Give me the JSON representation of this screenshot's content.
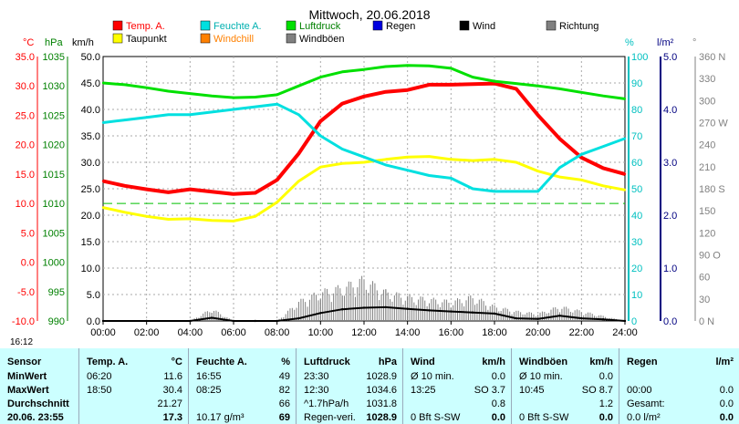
{
  "chart_data": {
    "type": "line",
    "title": "Mittwoch, 20.06.2018",
    "x_ticks": [
      "00:00",
      "02:00",
      "04:00",
      "06:00",
      "08:00",
      "10:00",
      "12:00",
      "14:00",
      "16:00",
      "18:00",
      "20:00",
      "22:00",
      "24:00"
    ],
    "axes": {
      "temp": {
        "unit": "°C",
        "ticks": [
          "35.0",
          "30.0",
          "25.0",
          "20.0",
          "15.0",
          "10.0",
          "5.0",
          "0.0",
          "-5.0",
          "-10.0"
        ],
        "range": [
          -10,
          35
        ],
        "color": "#ff0000"
      },
      "pressure": {
        "unit": "hPa",
        "ticks": [
          "1035",
          "1030",
          "1025",
          "1020",
          "1015",
          "1010",
          "1005",
          "1000",
          "995",
          "990"
        ],
        "range": [
          990,
          1035
        ],
        "color": "#008000"
      },
      "wind": {
        "unit": "km/h",
        "ticks": [
          "50.0",
          "45.0",
          "40.0",
          "35.0",
          "30.0",
          "25.0",
          "20.0",
          "15.0",
          "10.0",
          "5.0",
          "0.0"
        ],
        "range": [
          0,
          50
        ],
        "color": "#000000"
      },
      "humidity": {
        "unit": "%",
        "ticks": [
          "100",
          "90",
          "80",
          "70",
          "60",
          "50",
          "40",
          "30",
          "20",
          "10",
          "0"
        ],
        "range": [
          0,
          100
        ],
        "color": "#00c0c0"
      },
      "rain": {
        "unit": "l/m²",
        "ticks": [
          "5.0",
          "4.0",
          "3.0",
          "2.0",
          "1.0",
          "0.0"
        ],
        "range": [
          0,
          5
        ],
        "color": "#000080"
      },
      "direction": {
        "unit": "°",
        "ticks": [
          "360 N",
          "330",
          "300",
          "270 W",
          "240",
          "210",
          "180 S",
          "150",
          "120",
          "90 O",
          "60",
          "30",
          "0 N"
        ],
        "range": [
          0,
          360
        ],
        "color": "#808080"
      }
    },
    "legend": [
      {
        "name": "Temp. A.",
        "color": "#ff0000"
      },
      {
        "name": "Feuchte A.",
        "color": "#00e0e0"
      },
      {
        "name": "Luftdruck",
        "color": "#00e000"
      },
      {
        "name": "Regen",
        "color": "#0000e0"
      },
      {
        "name": "Wind",
        "color": "#000000"
      },
      {
        "name": "Richtung",
        "color": "#808080"
      },
      {
        "name": "Taupunkt",
        "color": "#ffff00"
      },
      {
        "name": "Windchill",
        "color": "#ff8000"
      },
      {
        "name": "Windböen",
        "color": "#808080"
      }
    ],
    "series": [
      {
        "name": "Temp. A.",
        "axis": "temp",
        "color": "#ff0000",
        "x": [
          0,
          1,
          2,
          3,
          4,
          5,
          6,
          7,
          8,
          9,
          10,
          11,
          12,
          13,
          14,
          15,
          16,
          17,
          18,
          19,
          20,
          21,
          22,
          23,
          24
        ],
        "values": [
          13.8,
          13,
          12.4,
          11.9,
          12.4,
          12,
          11.6,
          11.8,
          14,
          18.5,
          24,
          27,
          28.2,
          29,
          29.3,
          30.2,
          30.2,
          30.3,
          30.4,
          29.5,
          25,
          21,
          17.8,
          16,
          15
        ]
      },
      {
        "name": "Taupunkt",
        "axis": "temp",
        "color": "#ffff00",
        "x": [
          0,
          1,
          2,
          3,
          4,
          5,
          6,
          7,
          8,
          9,
          10,
          11,
          12,
          13,
          14,
          15,
          16,
          17,
          18,
          19,
          20,
          21,
          22,
          23,
          24
        ],
        "values": [
          9.3,
          8.5,
          7.8,
          7.3,
          7.4,
          7.1,
          7,
          7.8,
          10.2,
          13.8,
          16.2,
          16.8,
          17,
          17.5,
          17.9,
          18,
          17.5,
          17.3,
          17.5,
          17,
          15.5,
          14.5,
          14,
          13,
          12.3
        ]
      },
      {
        "name": "Feuchte A.",
        "axis": "humidity",
        "color": "#00e0e0",
        "x": [
          0,
          1,
          2,
          3,
          4,
          5,
          6,
          7,
          8,
          9,
          10,
          11,
          12,
          13,
          14,
          15,
          16,
          17,
          18,
          19,
          20,
          21,
          22,
          23,
          24
        ],
        "values": [
          75,
          76,
          77,
          78,
          78,
          79,
          80,
          81,
          82,
          78,
          70,
          65,
          62,
          59,
          57,
          55,
          54,
          50,
          49,
          49,
          49,
          58,
          63,
          66,
          69
        ]
      },
      {
        "name": "Luftdruck",
        "axis": "pressure",
        "color": "#00e000",
        "x": [
          0,
          1,
          2,
          3,
          4,
          5,
          6,
          7,
          8,
          9,
          10,
          11,
          12,
          13,
          14,
          15,
          16,
          17,
          18,
          19,
          20,
          21,
          22,
          23,
          24
        ],
        "values": [
          1030.5,
          1030.2,
          1029.7,
          1029.1,
          1028.7,
          1028.3,
          1028,
          1028.1,
          1028.5,
          1030,
          1031.5,
          1032.4,
          1032.8,
          1033.3,
          1033.5,
          1033.4,
          1033,
          1031.5,
          1030.8,
          1030.4,
          1030,
          1029.5,
          1028.9,
          1028.3,
          1027.8
        ]
      },
      {
        "name": "Wind",
        "axis": "wind",
        "color": "#000000",
        "x": [
          0,
          2,
          4,
          5,
          6,
          7,
          8,
          9,
          10,
          11,
          12,
          13,
          14,
          15,
          16,
          17,
          18,
          19,
          20,
          21,
          22,
          23,
          24
        ],
        "values": [
          0,
          0,
          0,
          0.6,
          0,
          0,
          0,
          0.5,
          1.5,
          2.2,
          2.5,
          2.6,
          2.3,
          2,
          1.8,
          1.6,
          1.4,
          0.5,
          0.4,
          1,
          0.5,
          0.3,
          0
        ]
      },
      {
        "name": "Windböen",
        "axis": "wind",
        "color": "#808080",
        "x": [
          0,
          2,
          4,
          5,
          6,
          7,
          8,
          9,
          10,
          11,
          12,
          13,
          14,
          15,
          16,
          17,
          18,
          19,
          20,
          21,
          22,
          23,
          24
        ],
        "values": [
          0,
          0,
          0,
          2.5,
          0,
          0,
          0,
          4,
          6,
          7,
          8.7,
          6,
          5,
          4.5,
          4,
          5,
          3,
          2,
          1.5,
          3,
          2,
          1,
          0
        ]
      }
    ],
    "reference_line": {
      "axis": "temp",
      "value": 10.0,
      "color": "#00c000",
      "style": "dashed"
    },
    "grid": true
  },
  "status": {
    "time": "16:12"
  },
  "table": {
    "columns": [
      {
        "header": "Sensor",
        "unit": ""
      },
      {
        "header": "Temp. A.",
        "unit": "°C"
      },
      {
        "header": "Feuchte A.",
        "unit": "%"
      },
      {
        "header": "Luftdruck",
        "unit": "hPa"
      },
      {
        "header": "Wind",
        "unit": "km/h"
      },
      {
        "header": "Windböen",
        "unit": "km/h"
      },
      {
        "header": "Regen",
        "unit": "l/m²"
      }
    ],
    "rows": [
      {
        "label": "MinWert",
        "temp": [
          "06:20",
          "11.6"
        ],
        "hum": [
          "16:55",
          "49"
        ],
        "press": [
          "23:30",
          "1028.9"
        ],
        "wind": [
          "Ø 10 min.",
          "0.0"
        ],
        "gust": [
          "Ø 10 min.",
          "0.0"
        ],
        "rain": [
          "",
          ""
        ]
      },
      {
        "label": "MaxWert",
        "temp": [
          "18:50",
          "30.4"
        ],
        "hum": [
          "08:25",
          "82"
        ],
        "press": [
          "12:30",
          "1034.6"
        ],
        "wind": [
          "13:25",
          "SO 3.7"
        ],
        "gust": [
          "10:45",
          "SO 8.7"
        ],
        "rain": [
          "00:00",
          "0.0"
        ]
      },
      {
        "label": "Durchschnitt",
        "temp": [
          "",
          "21.27"
        ],
        "hum": [
          "",
          "66"
        ],
        "press": [
          "^1.7hPa/h",
          "1031.8"
        ],
        "wind": [
          "",
          "0.8"
        ],
        "gust": [
          "",
          "1.2"
        ],
        "rain": [
          "Gesamt:",
          "0.0"
        ]
      },
      {
        "label": "20.06. 23:55",
        "temp": [
          "",
          "17.3"
        ],
        "hum": [
          "10.17 g/m³",
          "69"
        ],
        "press": [
          "Regen-veri.",
          "1028.9"
        ],
        "wind": [
          "0 Bft S-SW",
          "0.0"
        ],
        "gust": [
          "0 Bft S-SW",
          "0.0"
        ],
        "rain": [
          "0.0 l/m²",
          "0.0"
        ]
      }
    ]
  }
}
